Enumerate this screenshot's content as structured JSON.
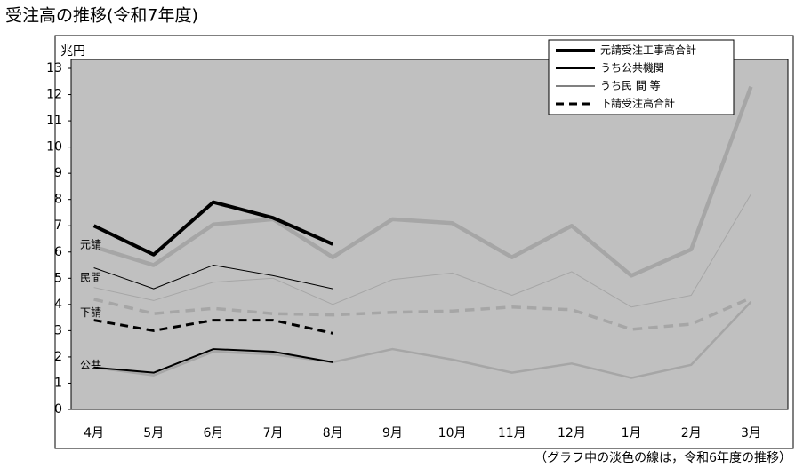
{
  "chart_data": {
    "type": "line",
    "title": "受注高の推移(令和7年度)",
    "y_label": "兆円",
    "footnote": "（グラフ中の淡色の線は，令和6年度の推移）",
    "categories": [
      "4月",
      "5月",
      "6月",
      "7月",
      "8月",
      "9月",
      "10月",
      "11月",
      "12月",
      "1月",
      "2月",
      "3月"
    ],
    "ylim": [
      0,
      13
    ],
    "yticks": [
      0,
      1,
      2,
      3,
      4,
      5,
      6,
      7,
      8,
      9,
      10,
      11,
      12,
      13
    ],
    "color": "#000000",
    "prev_color": "#a6a6a6",
    "plot_color": "#c0c0c0",
    "legend": "top-right",
    "series": [
      {
        "name": "元請受注工事高合計",
        "dashed": false,
        "values": [
          7.0,
          5.9,
          7.9,
          7.3,
          6.3,
          null,
          null,
          null,
          null,
          null,
          null,
          null
        ],
        "prev_values": [
          6.2,
          5.5,
          7.05,
          7.25,
          5.8,
          7.25,
          7.1,
          5.8,
          7.0,
          5.1,
          6.1,
          12.3
        ]
      },
      {
        "name": "うち公共機関",
        "dashed": false,
        "values": [
          1.6,
          1.4,
          2.3,
          2.2,
          1.8,
          null,
          null,
          null,
          null,
          null,
          null,
          null
        ],
        "prev_values": [
          1.6,
          1.3,
          2.2,
          2.1,
          1.8,
          2.3,
          1.9,
          1.4,
          1.75,
          1.2,
          1.7,
          4.1
        ]
      },
      {
        "name": "うち民 間 等",
        "dashed": false,
        "values": [
          5.4,
          4.6,
          5.5,
          5.1,
          4.6,
          null,
          null,
          null,
          null,
          null,
          null,
          null
        ],
        "prev_values": [
          4.65,
          4.15,
          4.85,
          5.0,
          4.0,
          4.95,
          5.2,
          4.35,
          5.25,
          3.9,
          4.35,
          8.2
        ]
      },
      {
        "name": "下請受注高合計",
        "dashed": true,
        "values": [
          3.4,
          3.0,
          3.4,
          3.4,
          2.9,
          null,
          null,
          null,
          null,
          null,
          null,
          null
        ],
        "prev_values": [
          4.2,
          3.65,
          3.85,
          3.65,
          3.6,
          3.7,
          3.75,
          3.9,
          3.8,
          3.05,
          3.25,
          4.25
        ]
      }
    ],
    "annotations": [
      "元請",
      "公共",
      "民間",
      "下請"
    ]
  }
}
